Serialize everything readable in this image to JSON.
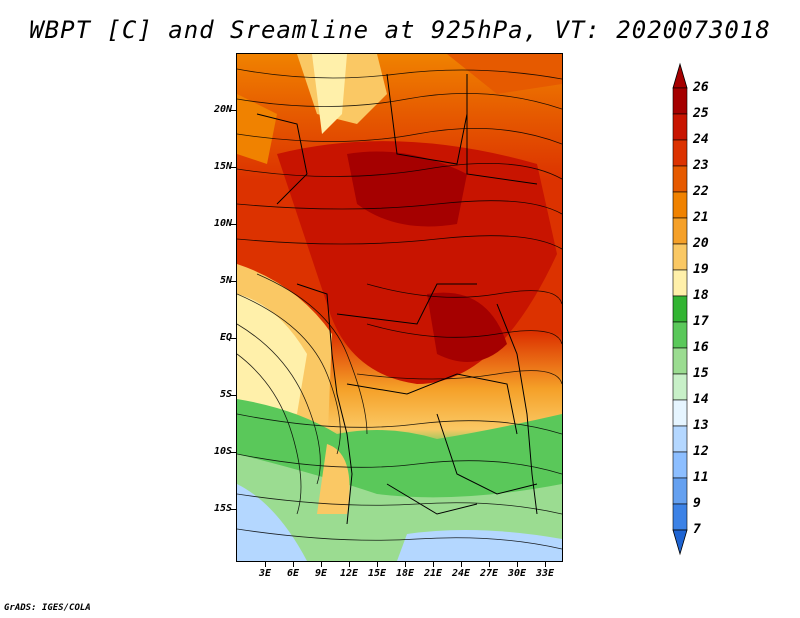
{
  "title": "WBPT [C] and Sreamline at 925hPa, VT: 2020073018",
  "credit": "GrADS: IGES/COLA",
  "map": {
    "lat_labels": [
      "20N",
      "15N",
      "10N",
      "5N",
      "EQ",
      "5S",
      "10S",
      "15S"
    ],
    "lon_labels": [
      "3E",
      "6E",
      "9E",
      "12E",
      "15E",
      "18E",
      "21E",
      "24E",
      "27E",
      "30E",
      "33E"
    ]
  },
  "colorbar": {
    "labels": [
      "26",
      "25",
      "24",
      "23",
      "22",
      "21",
      "20",
      "19",
      "18",
      "17",
      "16",
      "15",
      "14",
      "13",
      "12",
      "11",
      "9",
      "7"
    ],
    "colors": [
      "#a50000",
      "#c81400",
      "#dc3200",
      "#e65a00",
      "#f08200",
      "#f5a028",
      "#fac864",
      "#fff0aa",
      "#32b432",
      "#5ac85a",
      "#9bdc91",
      "#c8f0c8",
      "#e6f5ff",
      "#b4d7ff",
      "#8cbeff",
      "#64a0f0",
      "#3c82e6",
      "#1e64d2"
    ]
  }
}
